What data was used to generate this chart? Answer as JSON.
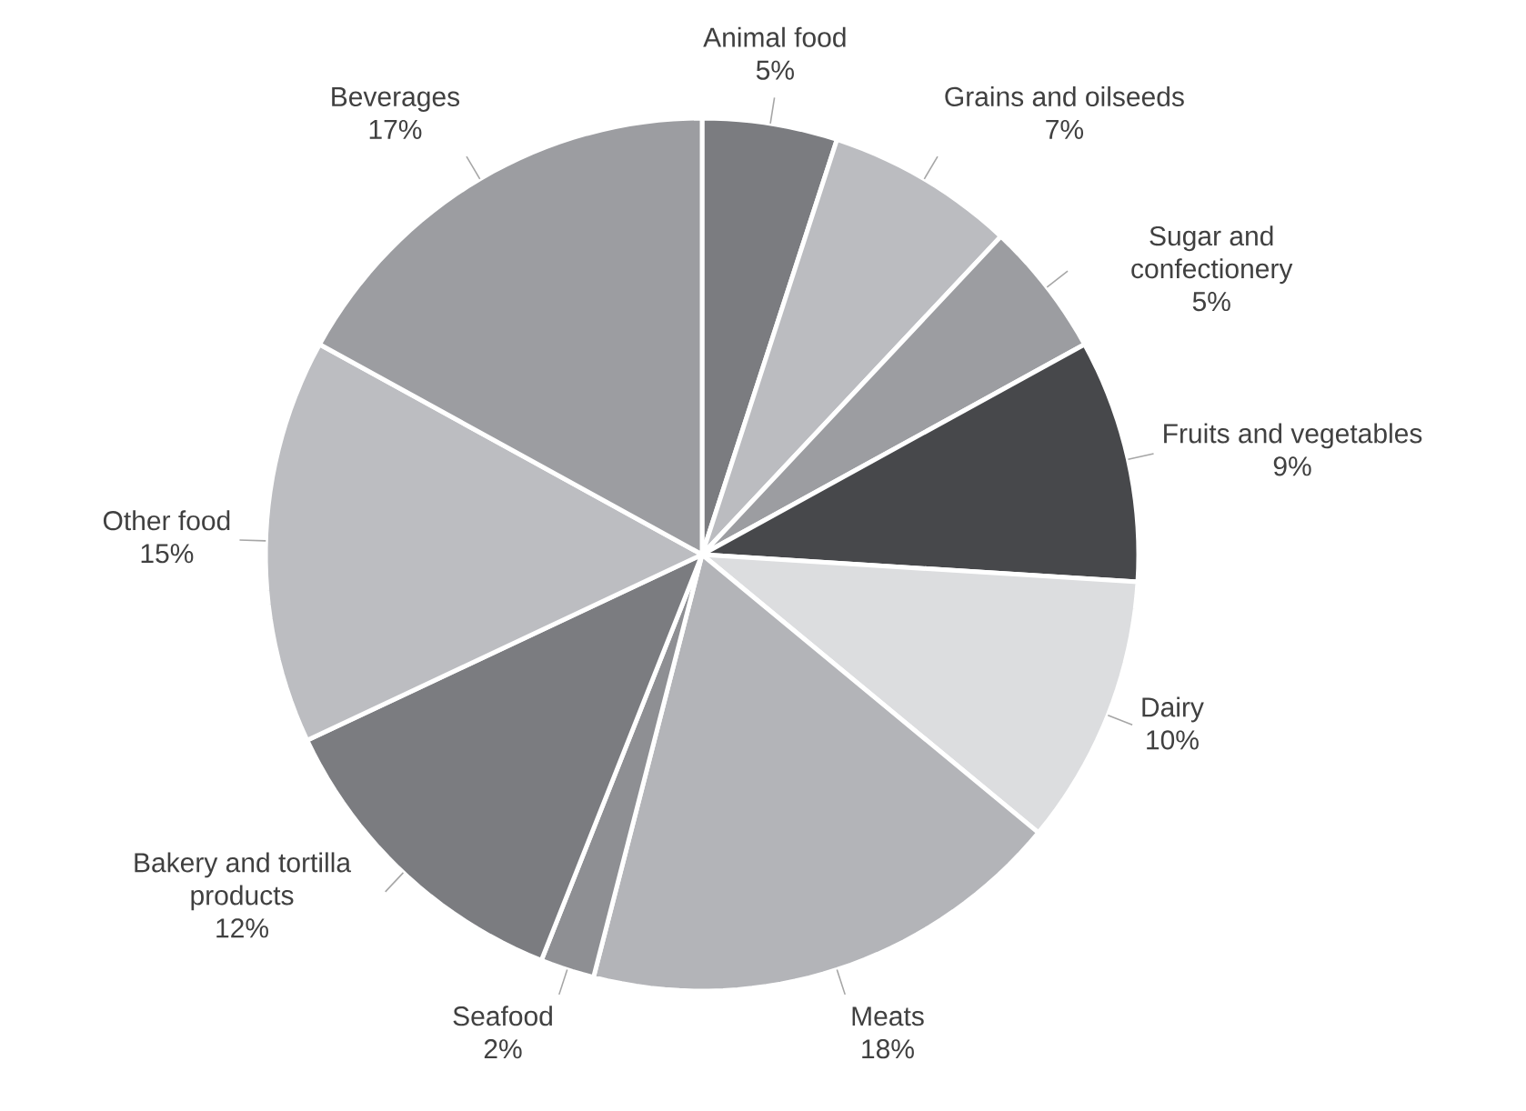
{
  "chart_data": {
    "type": "pie",
    "categories": [
      "Animal food",
      "Grains and oilseeds",
      "Sugar and confectionery",
      "Fruits and vegetables",
      "Dairy",
      "Meats",
      "Seafood",
      "Bakery and tortilla products",
      "Other food",
      "Beverages"
    ],
    "values": [
      5,
      7,
      5,
      9,
      10,
      18,
      2,
      12,
      15,
      17
    ],
    "value_labels": [
      "5%",
      "7%",
      "5%",
      "9%",
      "10%",
      "18%",
      "2%",
      "12%",
      "15%",
      "17%"
    ],
    "colors": [
      "#7b7c80",
      "#bbbcc0",
      "#9c9da1",
      "#47484b",
      "#dcdddf",
      "#b3b4b8",
      "#8e8f93",
      "#7b7c80",
      "#bcbdc1",
      "#9c9da1"
    ]
  }
}
